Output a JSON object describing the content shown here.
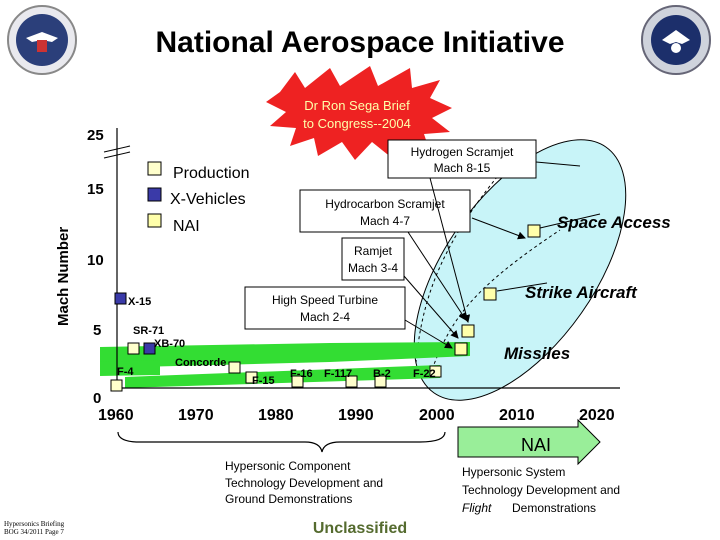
{
  "title": "National Aerospace Initiative",
  "burst": {
    "line1": "Dr Ron Sega Brief",
    "line2": "to Congress--2004"
  },
  "y_axis": {
    "label": "Mach Number",
    "ticks": [
      "25",
      "15",
      "10",
      "5",
      "0"
    ]
  },
  "x_axis": {
    "ticks": [
      "1960",
      "1970",
      "1980",
      "1990",
      "2000",
      "2010",
      "2020"
    ]
  },
  "legend": [
    {
      "label": "Production",
      "color": "#ffffcc"
    },
    {
      "label": "X-Vehicles",
      "color": "#3a3aa8"
    },
    {
      "label": "NAI",
      "color": "#ffffaa"
    }
  ],
  "callouts": {
    "hydrogen": {
      "line1": "Hydrogen Scramjet",
      "line2": "Mach 8-15"
    },
    "hydrocarbon": {
      "line1": "Hydrocarbon Scramjet",
      "line2": "Mach 4-7"
    },
    "ramjet": {
      "line1": "Ramjet",
      "line2": "Mach 3-4"
    },
    "turbine": {
      "line1": "High Speed Turbine",
      "line2": "Mach 2-4"
    }
  },
  "regions": {
    "space": "Space Access",
    "strike": "Strike Aircraft",
    "missiles": "Missiles"
  },
  "aircraft": {
    "x15": "X-15",
    "sr71": "SR-71",
    "xb70": "XB-70",
    "concorde": "Concorde",
    "f4": "F-4",
    "f15": "F-15",
    "f16": "F-16",
    "f117": "F-117",
    "b2": "B-2",
    "f22": "F-22"
  },
  "nai_arrow": "NAI",
  "bottom_left": {
    "line1": "Hypersonic Component",
    "line2": "Technology Development and",
    "line3": "Ground Demonstrations"
  },
  "bottom_right": {
    "line1": "Hypersonic System",
    "line2": "Technology Development and",
    "line3a": "Flight",
    "line3b": "Demonstrations"
  },
  "unclassified": "Unclassified",
  "footer": {
    "line1": "Hypersonics Briefing",
    "line2": "BOG 34/2011 Page 7"
  },
  "colors": {
    "green": "#33dd33",
    "cyan": "#c8f4f8",
    "burst": "#ee2222",
    "arrow": "#99ee99",
    "unclassified": "#556b2f"
  }
}
